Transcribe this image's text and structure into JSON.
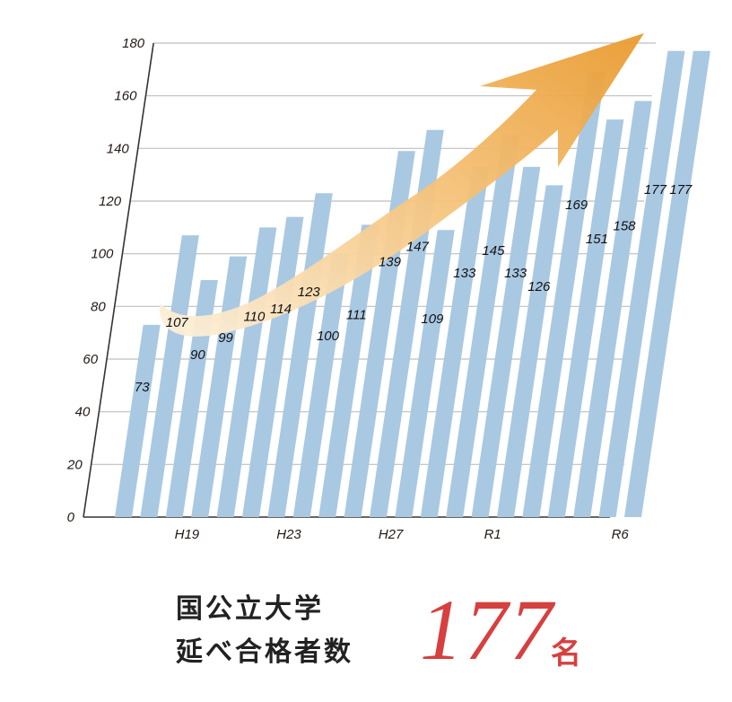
{
  "chart_data": {
    "type": "bar",
    "values": [
      73,
      107,
      90,
      99,
      110,
      114,
      123,
      100,
      111,
      139,
      147,
      109,
      133,
      145,
      133,
      126,
      169,
      151,
      158,
      177,
      177
    ],
    "x_tick_labels": [
      {
        "index": 1,
        "label": "H19"
      },
      {
        "index": 5,
        "label": "H23"
      },
      {
        "index": 9,
        "label": "H27"
      },
      {
        "index": 13,
        "label": "R1"
      },
      {
        "index": 18,
        "label": "R6"
      }
    ],
    "y_ticks": [
      "0",
      "20",
      "40",
      "60",
      "80",
      "100",
      "120",
      "140",
      "160",
      "180"
    ],
    "ylim": [
      0,
      180
    ],
    "grid": true,
    "bar_color": "#a9c8e2",
    "arrow_color": "#f0b55a"
  },
  "caption": {
    "line1": "国公立大学",
    "line2": "延べ合格者数",
    "number": "177",
    "unit": "名"
  },
  "colors": {
    "accent": "#d6403f",
    "text": "#222222"
  }
}
